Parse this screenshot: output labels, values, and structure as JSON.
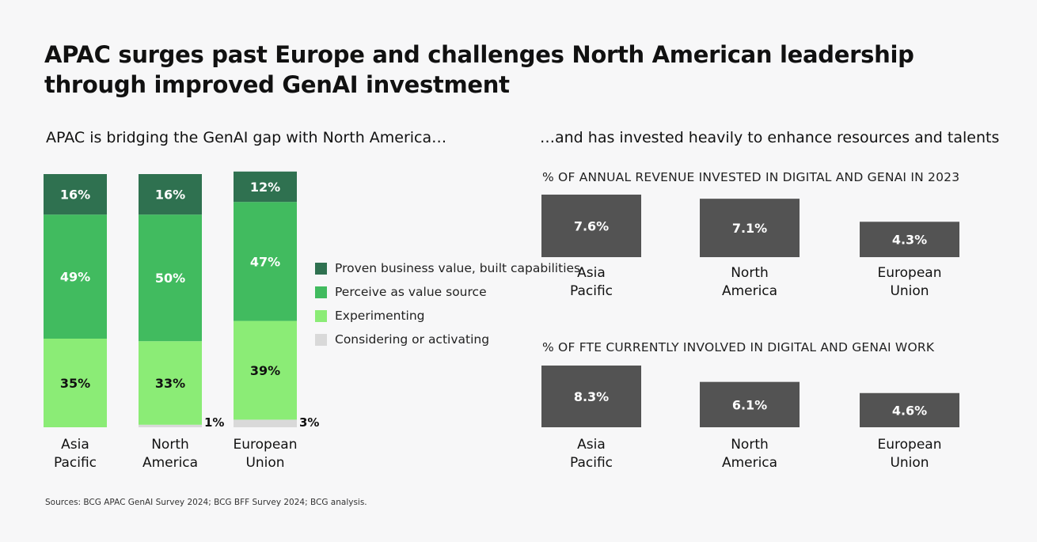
{
  "title": "APAC surges past Europe and challenges North American leadership through improved GenAI investment",
  "left_subtitle": "APAC is bridging the GenAI gap with North America…",
  "right_subtitle": "…and has invested heavily to enhance resources and talents",
  "colors": {
    "proven": "#2f7150",
    "perceive": "#41bb5f",
    "experimenting": "#8bec76",
    "considering": "#d9d9d9",
    "panel_bar": "#535353"
  },
  "legend": [
    {
      "key": "proven",
      "label": "Proven business value, built capabilities"
    },
    {
      "key": "perceive",
      "label": "Perceive as value source"
    },
    {
      "key": "experimenting",
      "label": "Experimenting"
    },
    {
      "key": "considering",
      "label": "Considering or activating"
    }
  ],
  "chart_data": [
    {
      "type": "bar",
      "stacked": true,
      "categories": [
        [
          "Asia",
          "Pacific"
        ],
        [
          "North",
          "America"
        ],
        [
          "European",
          "Union"
        ]
      ],
      "series": [
        {
          "name": "Considering or activating",
          "key": "considering",
          "values": [
            0,
            1,
            3
          ],
          "labels": [
            "",
            "1%",
            "3%"
          ]
        },
        {
          "name": "Experimenting",
          "key": "experimenting",
          "values": [
            35,
            33,
            39
          ],
          "labels": [
            "35%",
            "33%",
            "39%"
          ]
        },
        {
          "name": "Perceive as value source",
          "key": "perceive",
          "values": [
            49,
            50,
            47
          ],
          "labels": [
            "49%",
            "50%",
            "47%"
          ]
        },
        {
          "name": "Proven business value, built capabilities",
          "key": "proven",
          "values": [
            16,
            16,
            12
          ],
          "labels": [
            "16%",
            "16%",
            "12%"
          ]
        }
      ],
      "ylim": [
        0,
        100
      ]
    },
    {
      "type": "bar",
      "title": "% OF ANNUAL REVENUE INVESTED IN DIGITAL AND GENAI IN 2023",
      "categories": [
        [
          "Asia",
          "Pacific"
        ],
        [
          "North",
          "America"
        ],
        [
          "European",
          "Union"
        ]
      ],
      "values": [
        7.6,
        7.1,
        4.3
      ],
      "labels": [
        "7.6%",
        "7.1%",
        "4.3%"
      ]
    },
    {
      "type": "bar",
      "title": "% OF FTE CURRENTLY INVOLVED IN DIGITAL AND GENAI WORK",
      "categories": [
        [
          "Asia",
          "Pacific"
        ],
        [
          "North",
          "America"
        ],
        [
          "European",
          "Union"
        ]
      ],
      "values": [
        8.3,
        6.1,
        4.6
      ],
      "labels": [
        "8.3%",
        "6.1%",
        "4.6%"
      ]
    }
  ],
  "source": "Sources: BCG APAC GenAI Survey 2024; BCG BFF Survey 2024; BCG analysis."
}
